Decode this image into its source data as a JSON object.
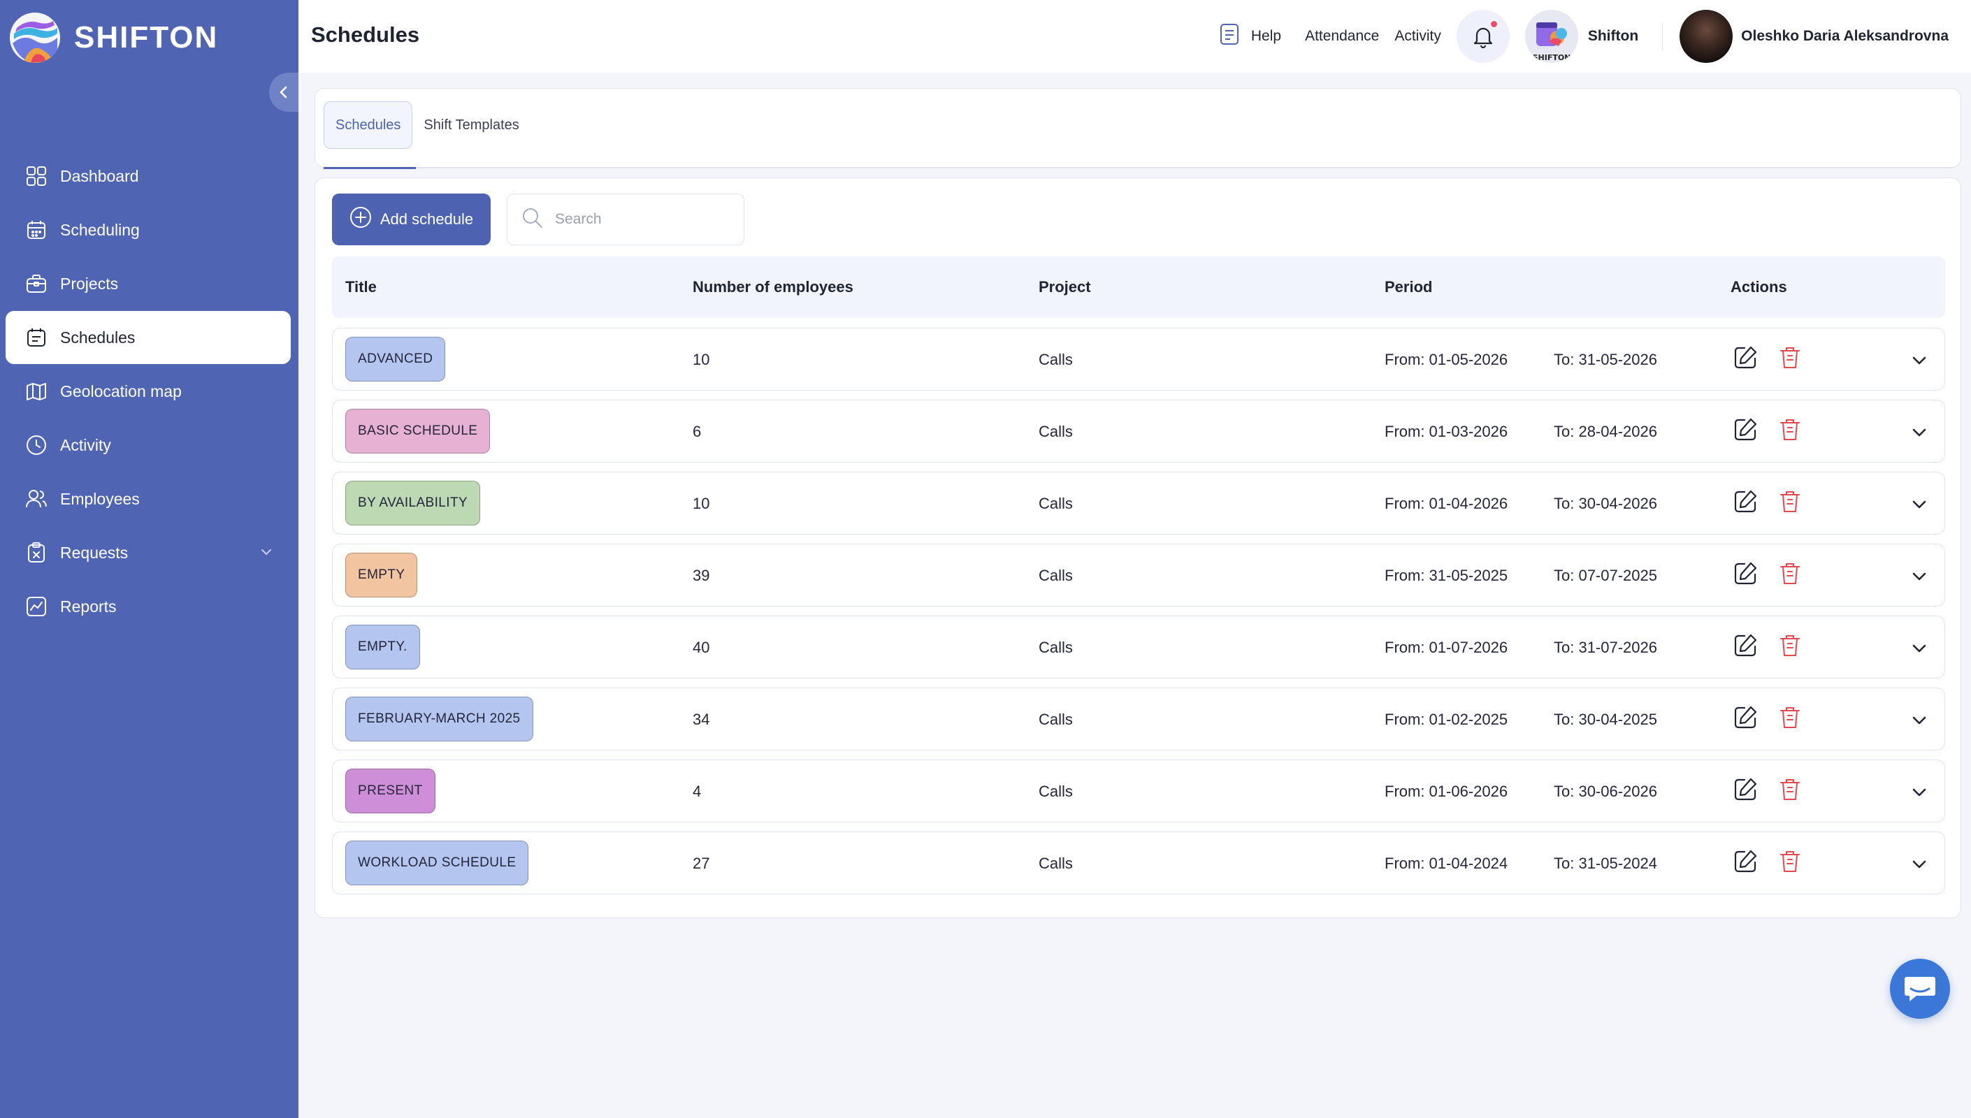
{
  "app": {
    "logo_text": "SHIFTON",
    "page_title": "Schedules"
  },
  "sidebar": {
    "items": [
      {
        "label": "Dashboard",
        "icon": "dashboard-icon",
        "active": false
      },
      {
        "label": "Scheduling",
        "icon": "calendar-icon",
        "active": false
      },
      {
        "label": "Projects",
        "icon": "briefcase-icon",
        "active": false
      },
      {
        "label": "Schedules",
        "icon": "schedule-icon",
        "active": true
      },
      {
        "label": "Geolocation map",
        "icon": "map-icon",
        "active": false
      },
      {
        "label": "Activity",
        "icon": "clock-icon",
        "active": false
      },
      {
        "label": "Employees",
        "icon": "users-icon",
        "active": false
      },
      {
        "label": "Requests",
        "icon": "request-icon",
        "active": false
      },
      {
        "label": "Reports",
        "icon": "chart-icon",
        "active": false
      }
    ]
  },
  "topbar": {
    "help_label": "Help",
    "attendance_label": "Attendance",
    "activity_label": "Activity",
    "company_name": "Shifton",
    "company_avatar_text": "SHIFTON",
    "user_name": "Oleshko Daria Aleksandrovna"
  },
  "tabs": [
    {
      "label": "Schedules",
      "active": true
    },
    {
      "label": "Shift Templates",
      "active": false
    }
  ],
  "toolbar": {
    "add_label": "Add schedule",
    "search_placeholder": "Search"
  },
  "table": {
    "headers": {
      "title": "Title",
      "employees": "Number of employees",
      "project": "Project",
      "period": "Period",
      "actions": "Actions"
    },
    "rows": [
      {
        "title": "ADVANCED",
        "color": "#b4c5f0",
        "employees": "10",
        "project": "Calls",
        "from": "From: 01-05-2026",
        "to": "To: 31-05-2026"
      },
      {
        "title": "BASIC SCHEDULE",
        "color": "#e7b1d4",
        "employees": "6",
        "project": "Calls",
        "from": "From: 01-03-2026",
        "to": "To: 28-04-2026"
      },
      {
        "title": "BY AVAILABILITY",
        "color": "#bcd9b4",
        "employees": "10",
        "project": "Calls",
        "from": "From: 01-04-2026",
        "to": "To: 30-04-2026"
      },
      {
        "title": "EMPTY",
        "color": "#f2c4a0",
        "employees": "39",
        "project": "Calls",
        "from": "From: 31-05-2025",
        "to": "To: 07-07-2025"
      },
      {
        "title": "EMPTY.",
        "color": "#b4c5f0",
        "employees": "40",
        "project": "Calls",
        "from": "From: 01-07-2026",
        "to": "To: 31-07-2026"
      },
      {
        "title": "FEBRUARY-MARCH 2025",
        "color": "#b4c5f0",
        "employees": "34",
        "project": "Calls",
        "from": "From: 01-02-2025",
        "to": "To: 30-04-2025"
      },
      {
        "title": "PRESENT",
        "color": "#cf8fd8",
        "employees": "4",
        "project": "Calls",
        "from": "From: 01-06-2026",
        "to": "To: 30-06-2026"
      },
      {
        "title": "WORKLOAD SCHEDULE",
        "color": "#b4c5f0",
        "employees": "27",
        "project": "Calls",
        "from": "From: 01-04-2024",
        "to": "To: 31-05-2024"
      }
    ]
  },
  "colors": {
    "sidebar": "#4f64b3",
    "accent": "#4d62b1",
    "delete": "#e5484d",
    "notification_dot": "#ef4a6a",
    "chat": "#3a77d9"
  }
}
